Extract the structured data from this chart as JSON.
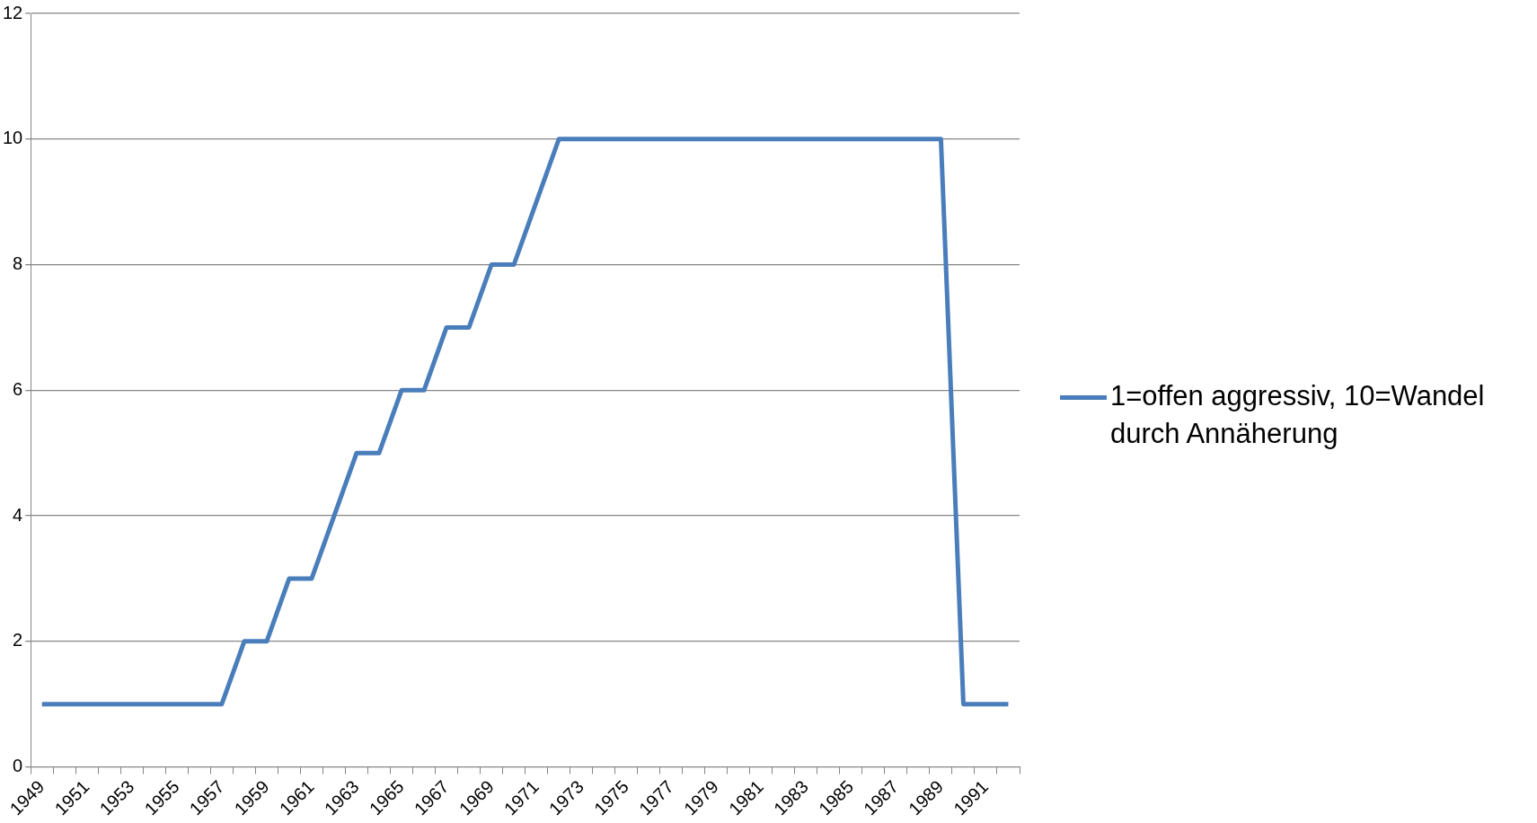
{
  "chart_data": {
    "type": "line",
    "categories": [
      "1949",
      null,
      "1951",
      null,
      "1953",
      null,
      "1955",
      null,
      "1957",
      null,
      "1959",
      null,
      "1961",
      null,
      "1963",
      null,
      "1965",
      null,
      "1967",
      null,
      "1969",
      null,
      "1971",
      null,
      "1973",
      null,
      "1975",
      null,
      "1977",
      null,
      "1979",
      null,
      "1981",
      null,
      "1983",
      null,
      "1985",
      null,
      "1987",
      null,
      "1989",
      null,
      "1991",
      null
    ],
    "series": [
      {
        "name": "1=offen aggressiv, 10=Wandel durch Annäherung",
        "color": "#4a7ebb",
        "values": [
          1,
          1,
          1,
          1,
          1,
          1,
          1,
          1,
          1,
          2,
          2,
          3,
          3,
          4,
          5,
          5,
          6,
          6,
          7,
          7,
          8,
          8,
          9,
          10,
          10,
          10,
          10,
          10,
          10,
          10,
          10,
          10,
          10,
          10,
          10,
          10,
          10,
          10,
          10,
          10,
          10,
          1,
          1,
          1
        ]
      }
    ],
    "ylim": [
      0,
      12
    ],
    "yticks": [
      0,
      2,
      4,
      6,
      8,
      10,
      12
    ],
    "grid": "y",
    "legend": "right",
    "marker": "none",
    "line_style": "solid"
  }
}
